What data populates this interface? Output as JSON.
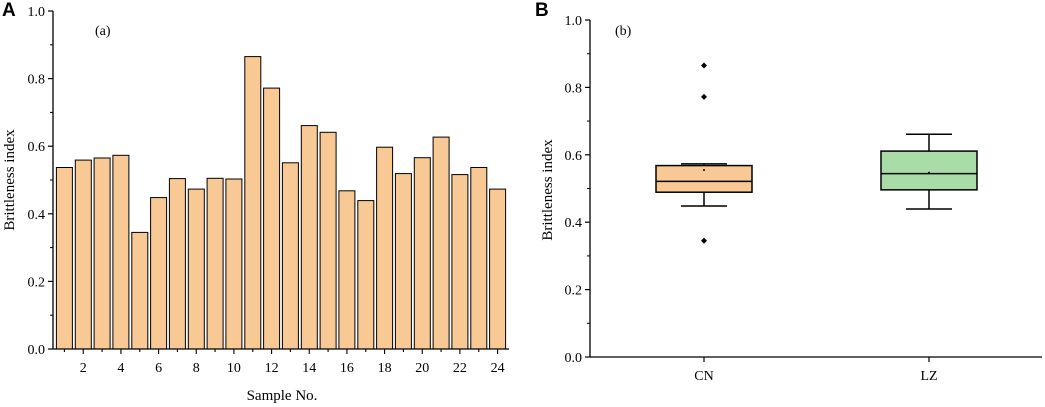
{
  "figure": {
    "panel_letters": [
      "A",
      "B"
    ]
  },
  "chart_data": [
    {
      "type": "bar",
      "panel_tag": "(a)",
      "title": "",
      "xlabel": "Sample No.",
      "ylabel": "Brittleness index",
      "ylim": [
        0,
        1.0
      ],
      "yticks": [
        "0.0",
        "0.2",
        "0.4",
        "0.6",
        "0.8",
        "1.0"
      ],
      "xtick_labels": [
        "2",
        "4",
        "6",
        "8",
        "10",
        "12",
        "14",
        "16",
        "18",
        "20",
        "22",
        "24"
      ],
      "categories": [
        1,
        2,
        3,
        4,
        5,
        6,
        7,
        8,
        9,
        10,
        11,
        12,
        13,
        14,
        15,
        16,
        17,
        18,
        19,
        20,
        21,
        22,
        23,
        24
      ],
      "values": [
        0.537,
        0.559,
        0.565,
        0.573,
        0.345,
        0.448,
        0.504,
        0.473,
        0.505,
        0.503,
        0.865,
        0.772,
        0.551,
        0.661,
        0.641,
        0.468,
        0.439,
        0.597,
        0.519,
        0.566,
        0.627,
        0.516,
        0.537,
        0.473
      ],
      "bar_color": "#f9c995",
      "grid": false
    },
    {
      "type": "box",
      "panel_tag": "(b)",
      "title": "",
      "xlabel": "",
      "ylabel": "Brittleness index",
      "ylim": [
        0,
        1.0
      ],
      "yticks": [
        "0.0",
        "0.2",
        "0.4",
        "0.6",
        "0.8",
        "1.0"
      ],
      "categories": [
        "CN",
        "LZ"
      ],
      "boxes": [
        {
          "name": "CN",
          "color": "#f9c995",
          "whisker_low": 0.448,
          "q1": 0.489,
          "median": 0.521,
          "q3": 0.568,
          "whisker_high": 0.573,
          "mean": 0.555,
          "outliers": [
            0.345,
            0.772,
            0.865
          ]
        },
        {
          "name": "LZ",
          "color": "#a8dda8",
          "whisker_low": 0.439,
          "q1": 0.496,
          "median": 0.544,
          "q3": 0.611,
          "whisker_high": 0.661,
          "mean": 0.547,
          "outliers": []
        }
      ],
      "grid": false
    }
  ]
}
